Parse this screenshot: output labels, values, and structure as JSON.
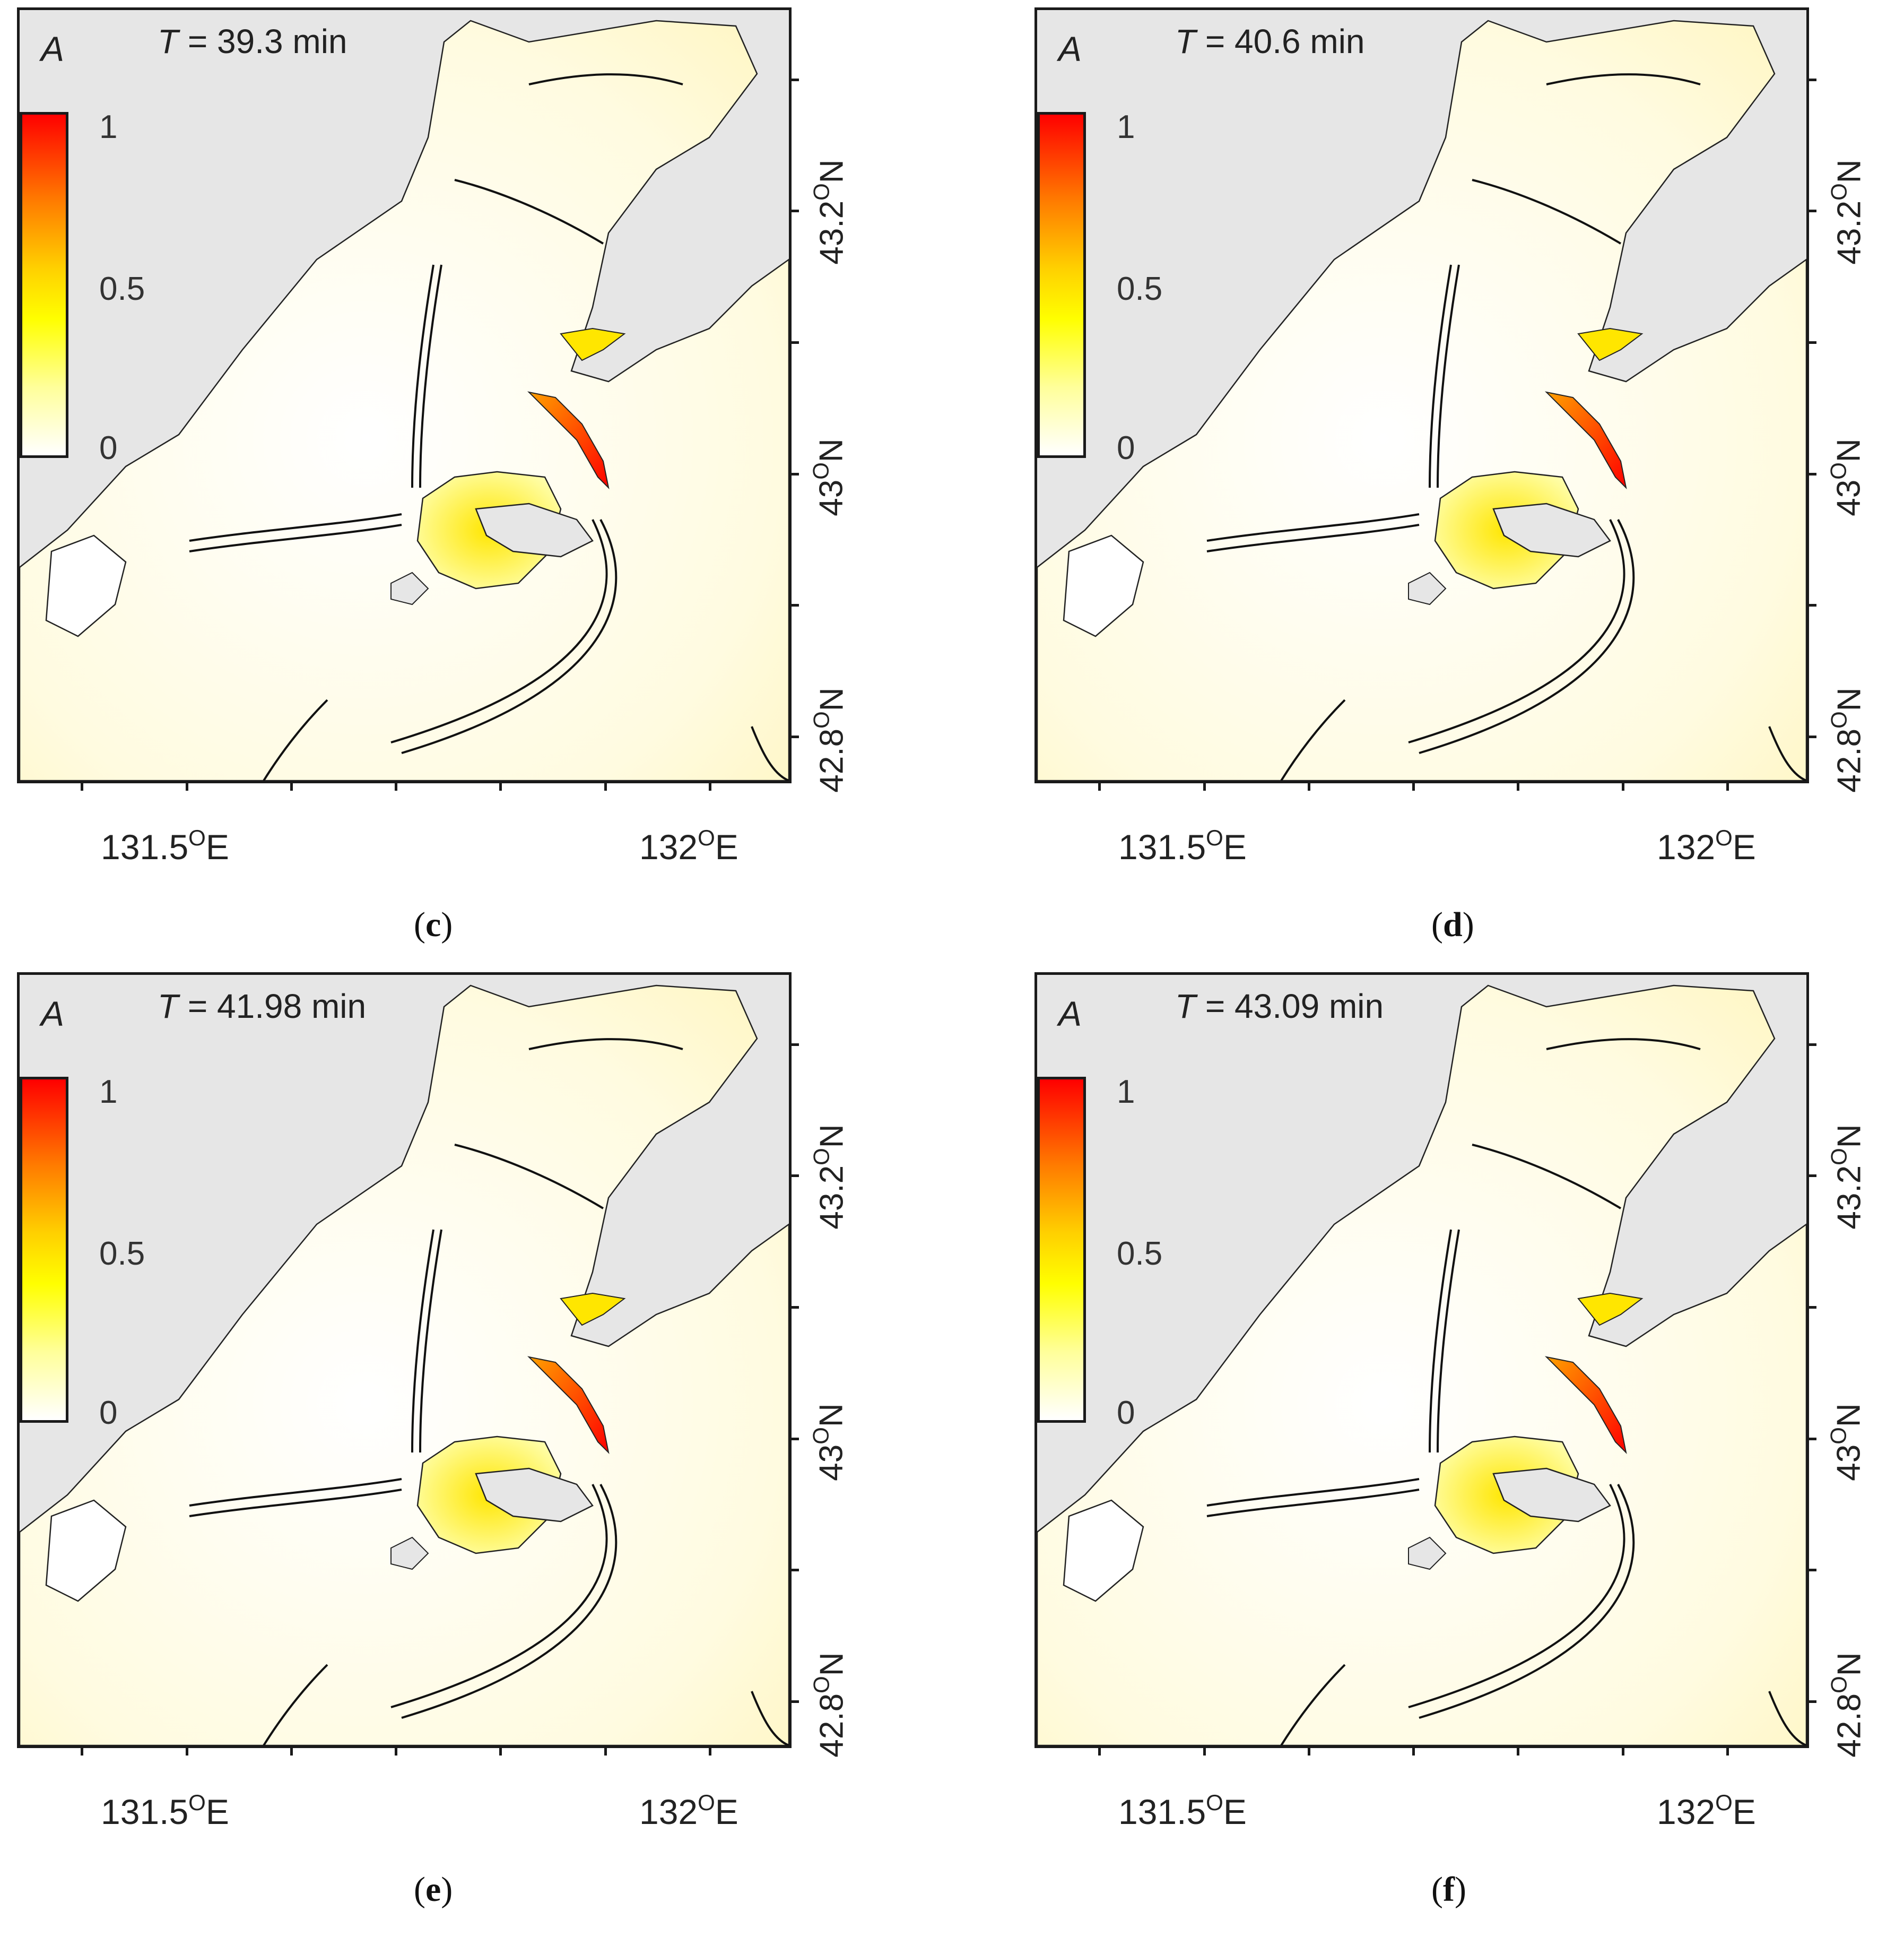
{
  "panels": [
    {
      "id": "c",
      "caption": "c",
      "time_label": "T",
      "time_value": "= 39.3 min"
    },
    {
      "id": "d",
      "caption": "d",
      "time_label": "T",
      "time_value": "= 40.6 min"
    },
    {
      "id": "e",
      "caption": "e",
      "time_label": "T",
      "time_value": "= 41.98 min"
    },
    {
      "id": "f",
      "caption": "f",
      "time_label": "T",
      "time_value": "= 43.09 min"
    }
  ],
  "colorbar": {
    "symbol": "A",
    "max": "1",
    "mid": "0.5",
    "min": "0",
    "colors": [
      "#ffffff",
      "#ffff00",
      "#ff7a00",
      "#ff0000"
    ]
  },
  "axes": {
    "lat_labels": [
      {
        "value": "43.2",
        "unit": "O",
        "hemi": "N"
      },
      {
        "value": "43",
        "unit": "O",
        "hemi": "N"
      },
      {
        "value": "42.8",
        "unit": "O",
        "hemi": "N"
      }
    ],
    "lon_labels": [
      {
        "value": "131.5",
        "unit": "O",
        "hemi": "E"
      },
      {
        "value": "132",
        "unit": "O",
        "hemi": "E"
      }
    ]
  },
  "colors": {
    "land": "#e6e6e6",
    "frame": "#1a1a1a"
  }
}
